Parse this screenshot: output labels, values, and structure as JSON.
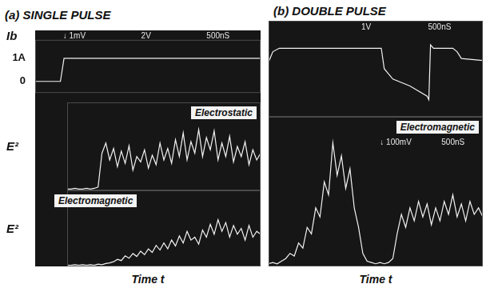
{
  "chart_data": [
    {
      "type": "line",
      "title": "(a) SINGLE PULSE",
      "y_label": "Ib",
      "annotations": [
        "↓ 1mV",
        "2V",
        "500nS"
      ],
      "x": [
        0,
        560,
        640,
        5000
      ],
      "values": [
        0,
        0,
        1,
        1
      ],
      "color": "#f2f2f2",
      "xlim": [
        0,
        5000
      ],
      "ylim": [
        -0.5,
        1.8
      ],
      "yticks": [
        {
          "value": 1,
          "label": "1A"
        },
        0
      ],
      "grid": false,
      "tick_labels": "y"
    },
    {
      "type": "line",
      "y_label": "E²",
      "x": [
        0,
        100,
        200,
        300,
        400,
        500,
        600,
        700,
        800,
        900,
        1000,
        1100,
        1200,
        1300,
        1400,
        1500,
        1600,
        1700,
        1800,
        1900,
        2000,
        2100,
        2200,
        2300,
        2400,
        2500,
        2600,
        2700,
        2800,
        2900,
        3000,
        3100,
        3200,
        3300,
        3400,
        3500,
        3600,
        3700,
        3800,
        3900,
        4000,
        4100,
        4200,
        4300,
        4400,
        4500,
        4600,
        4700,
        4800,
        4900,
        5000
      ],
      "series": [
        {
          "name": "Electrostatic",
          "color": "#f2f2f2",
          "values": [
            0.02,
            0.02,
            0.03,
            0.02,
            0.02,
            0.03,
            0.02,
            0.03,
            0.05,
            0.55,
            0.7,
            0.45,
            0.62,
            0.35,
            0.58,
            0.4,
            0.66,
            0.3,
            0.5,
            0.42,
            0.6,
            0.33,
            0.52,
            0.38,
            0.7,
            0.45,
            0.62,
            0.4,
            0.75,
            0.5,
            0.85,
            0.45,
            0.72,
            0.55,
            0.9,
            0.5,
            0.78,
            0.6,
            0.88,
            0.45,
            0.7,
            0.5,
            0.8,
            0.42,
            0.65,
            0.5,
            0.72,
            0.38,
            0.6,
            0.45,
            0.55
          ]
        }
      ],
      "xlim": [
        0,
        5000
      ],
      "ylim": [
        0,
        1.3
      ],
      "grid": false,
      "tick_labels": false
    },
    {
      "type": "line",
      "y_label": "E²",
      "x_label": "Time t",
      "x": [
        0,
        100,
        200,
        300,
        400,
        500,
        600,
        700,
        800,
        900,
        1000,
        1100,
        1200,
        1300,
        1400,
        1500,
        1600,
        1700,
        1800,
        1900,
        2000,
        2100,
        2200,
        2300,
        2400,
        2500,
        2600,
        2700,
        2800,
        2900,
        3000,
        3100,
        3200,
        3300,
        3400,
        3500,
        3600,
        3700,
        3800,
        3900,
        4000,
        4100,
        4200,
        4300,
        4400,
        4500,
        4600,
        4700,
        4800,
        4900,
        5000
      ],
      "series": [
        {
          "name": "Electromagnetic",
          "color": "#f2f2f2",
          "values": [
            0.02,
            0.02,
            0.03,
            0.02,
            0.03,
            0.02,
            0.03,
            0.02,
            0.04,
            0.03,
            0.05,
            0.06,
            0.08,
            0.12,
            0.1,
            0.18,
            0.14,
            0.22,
            0.17,
            0.26,
            0.2,
            0.3,
            0.24,
            0.36,
            0.28,
            0.4,
            0.3,
            0.45,
            0.35,
            0.52,
            0.4,
            0.6,
            0.45,
            0.5,
            0.38,
            0.62,
            0.5,
            0.72,
            0.55,
            0.8,
            0.6,
            0.75,
            0.5,
            0.7,
            0.55,
            0.65,
            0.45,
            0.7,
            0.5,
            0.6,
            0.55
          ]
        }
      ],
      "xlim": [
        0,
        5000
      ],
      "ylim": [
        0,
        1.3
      ],
      "grid": false,
      "tick_labels": false
    },
    {
      "type": "line",
      "title": "(b) DOUBLE PULSE",
      "annotations": [
        "1V",
        "500nS"
      ],
      "x": [
        0,
        100,
        250,
        2500,
        2630,
        2700,
        2900,
        3300,
        3700,
        3740,
        3780,
        3850,
        4300,
        4400,
        4500,
        5000
      ],
      "values": [
        0.8,
        0.95,
        1.0,
        1.0,
        1.0,
        0.7,
        0.55,
        0.45,
        0.3,
        0.25,
        1.05,
        1.0,
        1.0,
        0.95,
        0.85,
        0.82
      ],
      "color": "#f2f2f2",
      "xlim": [
        0,
        5000
      ],
      "ylim": [
        0,
        1.4
      ],
      "grid": false,
      "tick_labels": false
    },
    {
      "type": "line",
      "x_label": "Time t",
      "annotations": [
        "↓ 100mV",
        "500nS"
      ],
      "x": [
        0,
        100,
        200,
        300,
        400,
        500,
        600,
        700,
        800,
        900,
        1000,
        1100,
        1200,
        1300,
        1400,
        1500,
        1600,
        1700,
        1800,
        1900,
        2000,
        2100,
        2200,
        2300,
        2400,
        2500,
        2600,
        2700,
        2800,
        2900,
        3000,
        3100,
        3200,
        3300,
        3400,
        3500,
        3600,
        3700,
        3800,
        3900,
        4000,
        4100,
        4200,
        4300,
        4400,
        4500,
        4600,
        4700,
        4800,
        4900,
        5000
      ],
      "series": [
        {
          "name": "Electromagnetic",
          "color": "#f2f2f2",
          "values": [
            0.02,
            0.03,
            0.02,
            0.04,
            0.06,
            0.1,
            0.08,
            0.18,
            0.14,
            0.3,
            0.25,
            0.45,
            0.38,
            0.65,
            0.55,
            0.95,
            0.7,
            0.85,
            0.6,
            0.75,
            0.45,
            0.3,
            0.1,
            0.04,
            0.03,
            0.02,
            0.03,
            0.02,
            0.03,
            0.06,
            0.25,
            0.4,
            0.3,
            0.45,
            0.35,
            0.5,
            0.38,
            0.48,
            0.32,
            0.45,
            0.35,
            0.5,
            0.4,
            0.55,
            0.38,
            0.48,
            0.35,
            0.5,
            0.4,
            0.45,
            0.38
          ]
        }
      ],
      "xlim": [
        0,
        5000
      ],
      "ylim": [
        0,
        1.15
      ],
      "grid": false,
      "tick_labels": false
    }
  ]
}
